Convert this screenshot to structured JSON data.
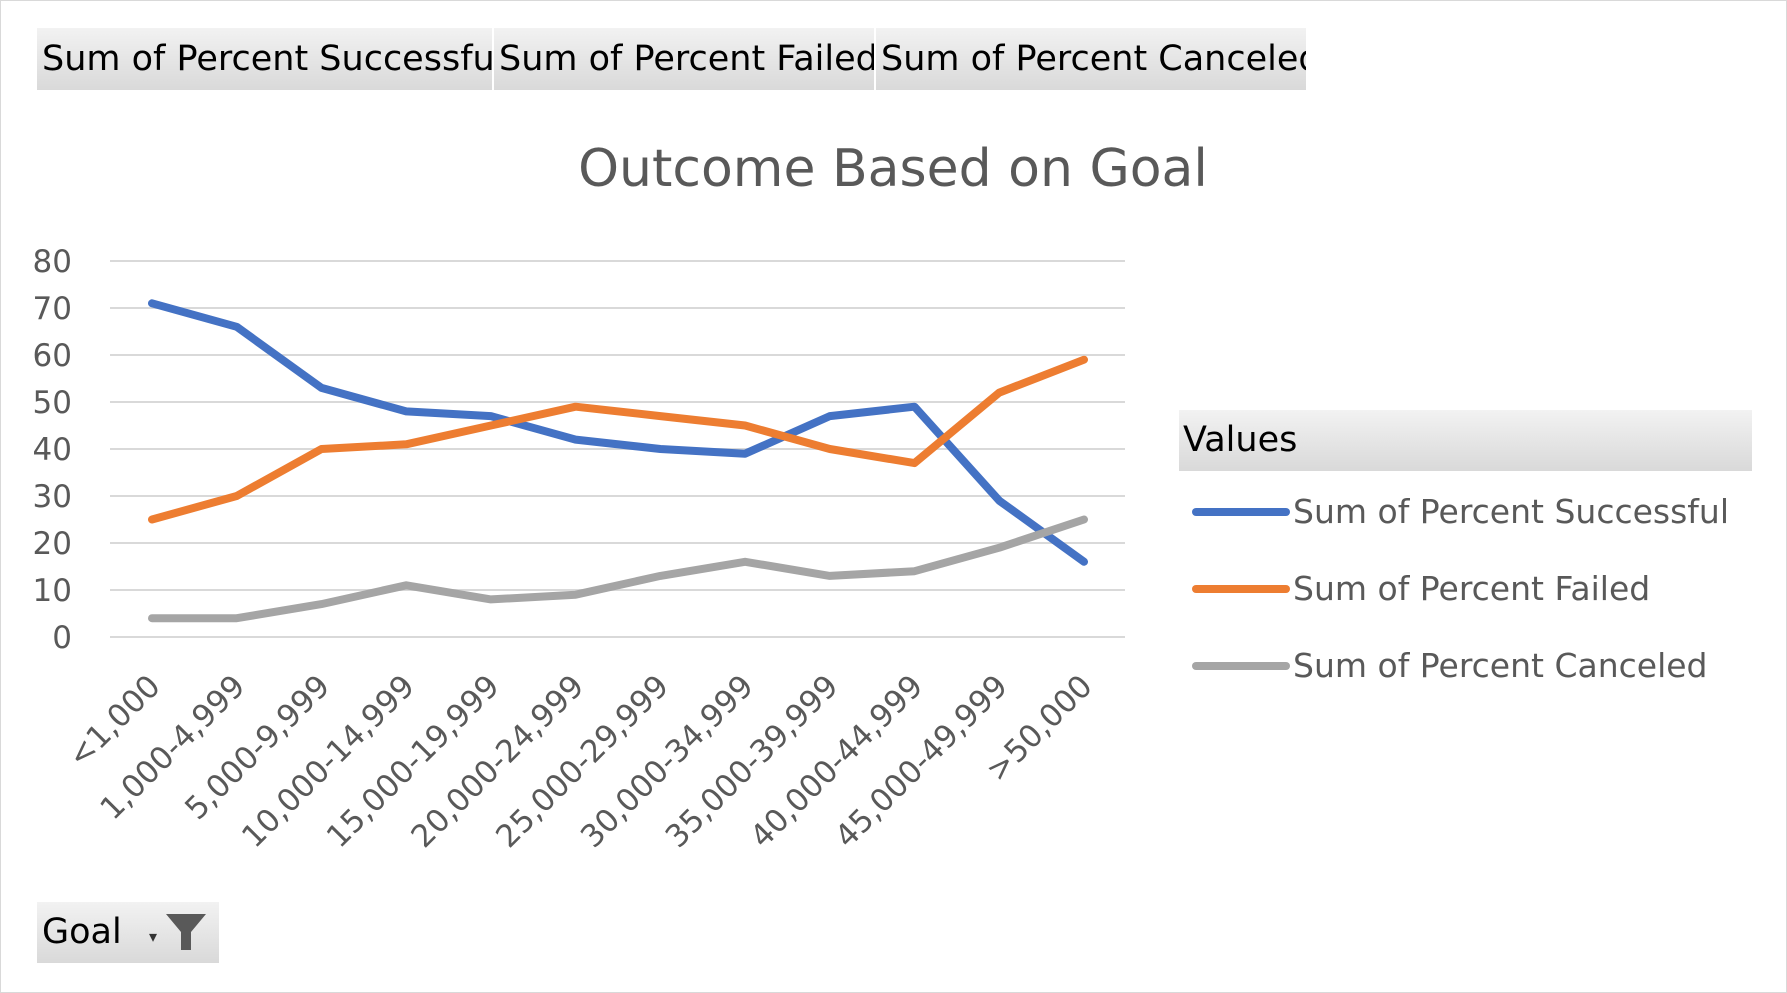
{
  "field_buttons": [
    "Sum of Percent Successful",
    "Sum of Percent Failed",
    "Sum of Percent Canceled"
  ],
  "legend_header": "Values",
  "filter_button": {
    "label": "Goal",
    "icon": "filter-icon",
    "dropdown_icon": "dropdown-arrow-icon"
  },
  "chart_data": {
    "type": "line",
    "title": "Outcome Based on Goal",
    "categories": [
      "<1,000",
      "1,000-4,999",
      "5,000-9,999",
      "10,000-14,999",
      "15,000-19,999",
      "20,000-24,999",
      "25,000-29,999",
      "30,000-34,999",
      "35,000-39,999",
      "40,000-44,999",
      "45,000-49,999",
      ">50,000"
    ],
    "series": [
      {
        "name": "Sum of Percent Successful",
        "color": "#4472c4",
        "values": [
          71,
          66,
          53,
          48,
          47,
          42,
          40,
          39,
          47,
          49,
          29,
          16
        ]
      },
      {
        "name": "Sum of Percent Failed",
        "color": "#ed7d31",
        "values": [
          25,
          30,
          40,
          41,
          45,
          49,
          47,
          45,
          40,
          37,
          52,
          59
        ]
      },
      {
        "name": "Sum of Percent Canceled",
        "color": "#a5a5a5",
        "values": [
          4,
          4,
          7,
          11,
          8,
          9,
          13,
          16,
          13,
          14,
          19,
          25
        ]
      }
    ],
    "ylim": [
      0,
      80
    ],
    "yticks": [
      0,
      10,
      20,
      30,
      40,
      50,
      60,
      70,
      80
    ],
    "grid": true,
    "legend_position": "right"
  }
}
